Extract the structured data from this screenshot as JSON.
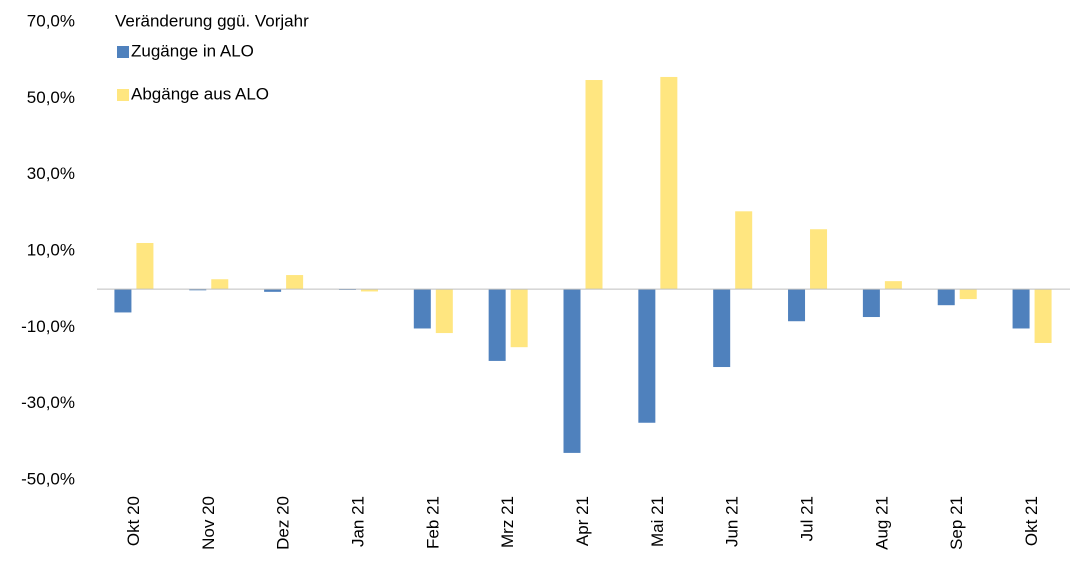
{
  "chart_data": {
    "type": "bar",
    "legend_title": "Veränderung ggü. Vorjahr",
    "categories": [
      "Okt 20",
      "Nov 20",
      "Dez 20",
      "Jan 21",
      "Feb 21",
      "Mrz 21",
      "Apr 21",
      "Mai 21",
      "Jun 21",
      "Jul 21",
      "Aug 21",
      "Sep 21",
      "Okt 21"
    ],
    "series": [
      {
        "name": "Zugänge in ALO",
        "color": "#4f81bd",
        "values": [
          -6.1,
          -0.3,
          -0.7,
          -0.2,
          -10.3,
          -18.8,
          -42.9,
          -35.0,
          -20.4,
          -8.4,
          -7.3,
          -4.2,
          -10.3
        ]
      },
      {
        "name": "Abgänge aus ALO",
        "color": "#ffe680",
        "values": [
          12.1,
          2.6,
          3.7,
          -0.6,
          -11.5,
          -15.2,
          54.8,
          55.6,
          20.4,
          15.7,
          2.1,
          -2.6,
          -14.1
        ]
      }
    ],
    "ylim": [
      -50,
      70
    ],
    "yticks": [
      {
        "value": -50,
        "label": "-50,0%"
      },
      {
        "value": -30,
        "label": "-30,0%"
      },
      {
        "value": -10,
        "label": "-10,0%"
      },
      {
        "value": 10,
        "label": "10,0%"
      },
      {
        "value": 30,
        "label": "30,0%"
      },
      {
        "value": 50,
        "label": "50,0%"
      },
      {
        "value": 70,
        "label": "70,0%"
      }
    ],
    "grid": false
  }
}
